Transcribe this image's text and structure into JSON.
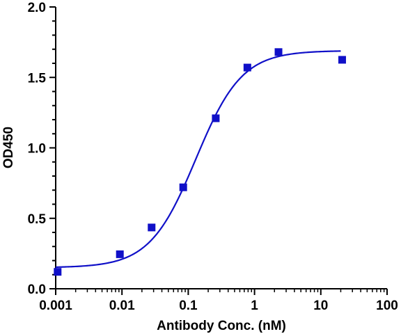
{
  "chart_data": {
    "type": "scatter",
    "xlabel": "Antibody Conc. (nM)",
    "ylabel": "OD450",
    "x_scale": "log",
    "xlim": [
      0.001,
      100
    ],
    "ylim": [
      0,
      2.0
    ],
    "x_ticks": [
      "0.001",
      "0.01",
      "0.1",
      "1",
      "10",
      "100"
    ],
    "y_ticks": [
      "0.0",
      "0.5",
      "1.0",
      "1.5",
      "2.0"
    ],
    "grid": false,
    "legend": "none",
    "marker": "square",
    "color": "#1010c8",
    "series": [
      {
        "points": [
          {
            "x": 0.00107,
            "y": 0.12
          },
          {
            "x": 0.0093,
            "y": 0.245
          },
          {
            "x": 0.028,
            "y": 0.435
          },
          {
            "x": 0.084,
            "y": 0.72
          },
          {
            "x": 0.26,
            "y": 1.21
          },
          {
            "x": 0.78,
            "y": 1.57
          },
          {
            "x": 2.3,
            "y": 1.68
          },
          {
            "x": 21,
            "y": 1.625
          }
        ],
        "fit": {
          "model": "4PL",
          "bottom": 0.15,
          "top": 1.69,
          "ec50": 0.13,
          "hill": 1.25,
          "x_range": [
            0.001,
            20
          ]
        }
      }
    ]
  }
}
